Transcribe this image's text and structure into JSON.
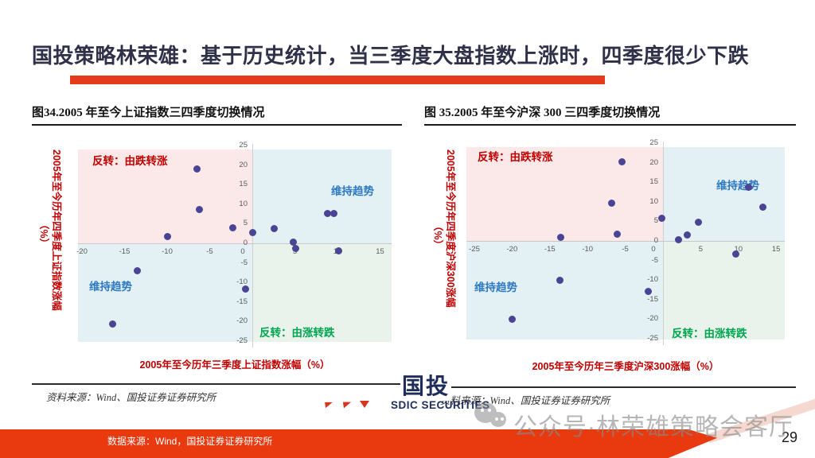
{
  "slide": {
    "title": "国投策略林荣雄：基于历史统计，当三季度大盘指数上涨时，四季度很少下跌",
    "page_number": "29"
  },
  "footer": {
    "source": "数据来源：Wind，国投证券证券研究所"
  },
  "watermark": {
    "text": "公众号·林荣雄策略会客厅",
    "icon": "wechat-icon"
  },
  "logo": {
    "cn": "国投",
    "en": "SDIC SECURITIES"
  },
  "colors": {
    "title_text": "#2F3148",
    "accent_bar": "#E43B1C",
    "footer_band": "#E8390F",
    "quadrant_pink": "#FAE9E8",
    "quadrant_blue": "#E3F1F5",
    "quadrant_green": "#E9F3EC",
    "point": "#4A4494",
    "label_red": "#C00000",
    "label_blue": "#2E79C0",
    "label_green": "#00A550",
    "tick_gray": "#595959"
  },
  "chart_data": [
    {
      "type": "scatter",
      "title": "图34.2005 年至今上证指数三四季度切换情况",
      "xlabel": "2005年至今历年三季度上证指数涨幅（%）",
      "ylabel": "2005年至今历年四季度上证指数涨幅",
      "ylabel_unit": "（%）",
      "source": "资料来源：Wind、国投证券证券研究所",
      "x_ticks": [
        -20,
        -15,
        -10,
        -5,
        0,
        5,
        10,
        15
      ],
      "y_ticks": [
        25,
        20,
        15,
        10,
        5,
        0,
        -5,
        -10,
        -15,
        -20,
        -25
      ],
      "xlim": [
        -22,
        16.5
      ],
      "ylim": [
        -25,
        25
      ],
      "grid": false,
      "legend": "none",
      "quadrants": {
        "top_left": "反转：由跌转涨",
        "top_right": "维持趋势",
        "bottom_left": "维持趋势",
        "bottom_right": "反转：由涨转跌"
      },
      "points": [
        [
          -6.5,
          19
        ],
        [
          -6.2,
          8.7
        ],
        [
          -2.3,
          3.9
        ],
        [
          -10,
          1.8
        ],
        [
          0,
          2.8
        ],
        [
          2.6,
          3.7
        ],
        [
          4.8,
          0.4
        ],
        [
          5.1,
          -1.4
        ],
        [
          8.8,
          7.7
        ],
        [
          9.6,
          7.7
        ],
        [
          10.1,
          -2
        ],
        [
          -13.5,
          -7
        ],
        [
          -0.8,
          -11.7
        ],
        [
          -16.4,
          -20.7
        ]
      ]
    },
    {
      "type": "scatter",
      "title": "图 35.2005 年至今沪深 300 三四季度切换情况",
      "xlabel": "2005年至今历年三季度沪深300涨幅（%）",
      "ylabel": "2005年至今历年四季度沪深300涨幅",
      "ylabel_unit": "（%）",
      "source": "资料来源：Wind、国投证券证券研究所",
      "x_ticks": [
        -25,
        -20,
        -15,
        -10,
        -5,
        0,
        5,
        10,
        15
      ],
      "y_ticks": [
        25,
        20,
        15,
        10,
        5,
        0,
        -5,
        -10,
        -15,
        -20,
        -25
      ],
      "xlim": [
        -27,
        16
      ],
      "ylim": [
        -25,
        25
      ],
      "grid": false,
      "legend": "none",
      "quadrants": {
        "top_left": "反转：由跌转涨",
        "top_right": "维持趋势",
        "bottom_left": "维持趋势",
        "bottom_right": "反转：由涨转跌"
      },
      "points": [
        [
          -5.4,
          20.3
        ],
        [
          -6.8,
          9.7
        ],
        [
          -13.6,
          0.9
        ],
        [
          -6.1,
          1.7
        ],
        [
          -0.2,
          5.8
        ],
        [
          2.1,
          0.3
        ],
        [
          3.2,
          1.6
        ],
        [
          4.7,
          4.7
        ],
        [
          11.3,
          13.7
        ],
        [
          13.2,
          8.6
        ],
        [
          9.6,
          -3.3
        ],
        [
          -13.7,
          -10
        ],
        [
          -2,
          -13
        ],
        [
          -20,
          -20
        ]
      ]
    }
  ]
}
